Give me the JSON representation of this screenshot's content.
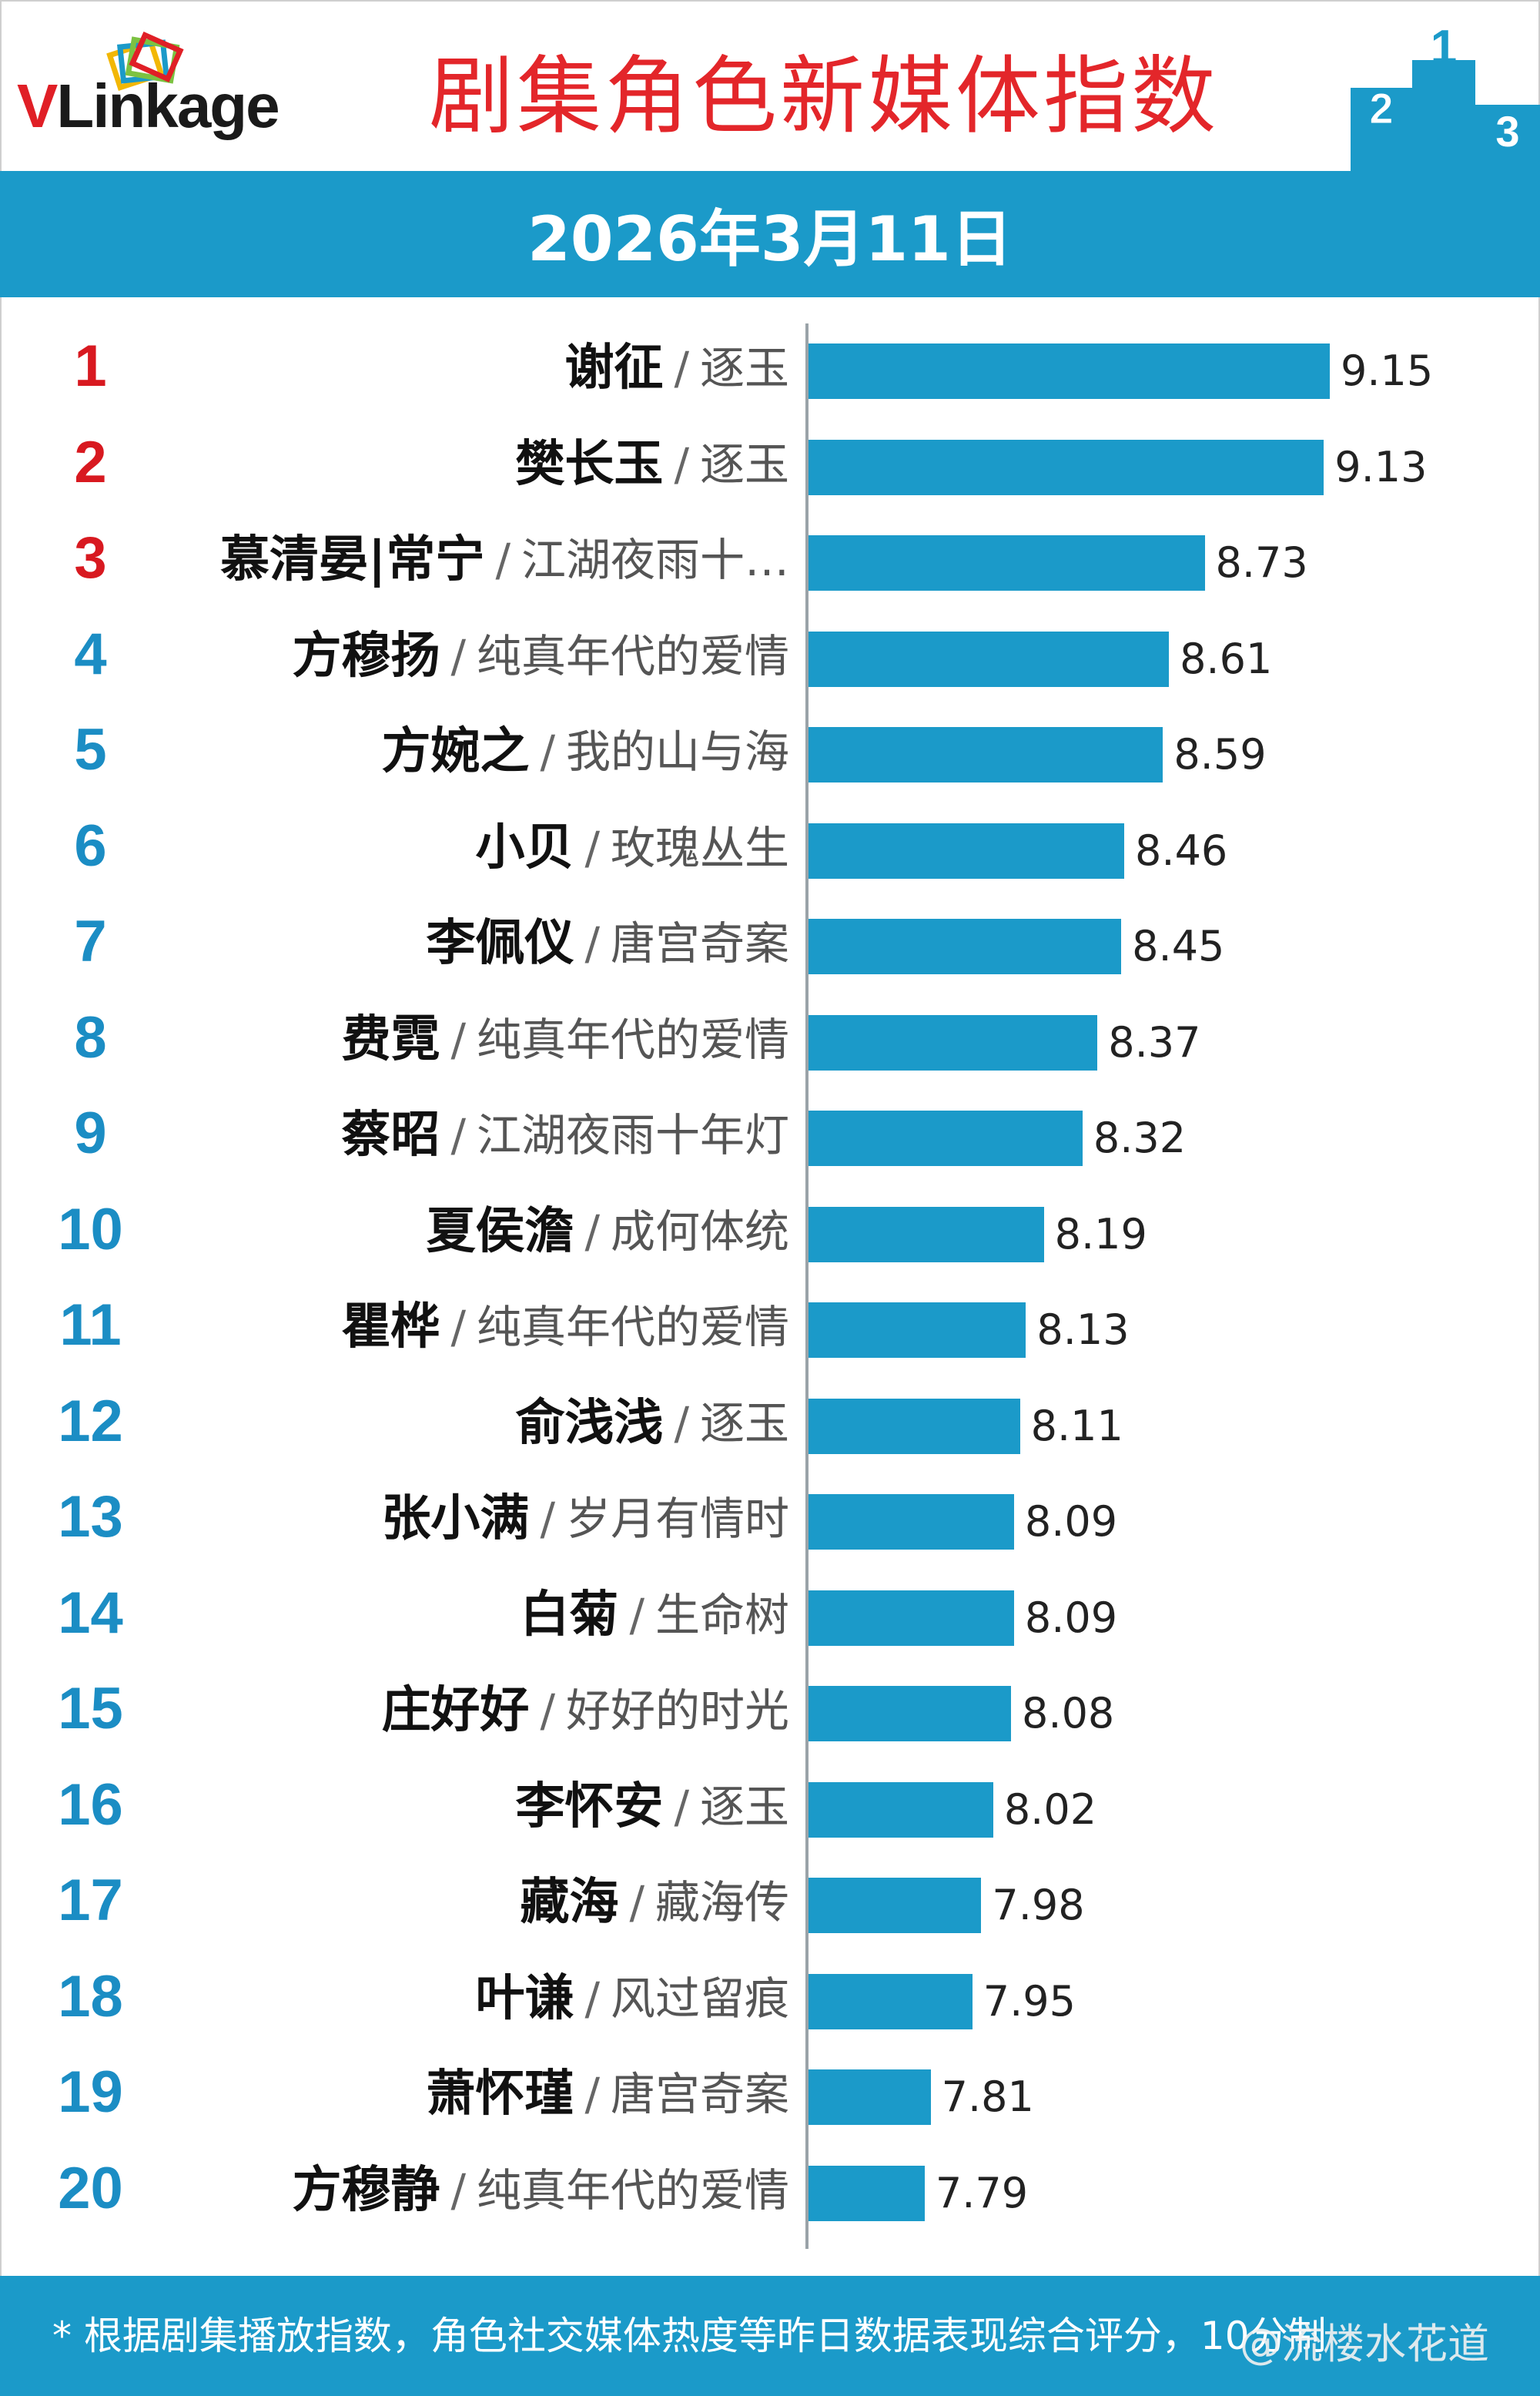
{
  "header": {
    "logo": {
      "v": "V",
      "rest": "Linkage"
    },
    "title": "剧集角色新媒体指数",
    "date": "2026年3月11日"
  },
  "podium_numbers": [
    "2",
    "1",
    "3"
  ],
  "colors": {
    "accent_blue": "#1b9ac9",
    "title_red": "#e3262a",
    "top_rank_red": "#d81920",
    "rank_blue": "#1b8dc4"
  },
  "chart_data": {
    "type": "bar",
    "orientation": "horizontal",
    "title": "剧集角色新媒体指数",
    "xlim": [
      7.4,
      9.3
    ],
    "rows": [
      {
        "rank": "1",
        "name": "谢征",
        "show": "逐玉",
        "value": 9.15
      },
      {
        "rank": "2",
        "name": "樊长玉",
        "show": "逐玉",
        "value": 9.13
      },
      {
        "rank": "3",
        "name": "慕清晏|常宁",
        "show": "江湖夜雨十…",
        "value": 8.73
      },
      {
        "rank": "4",
        "name": "方穆扬",
        "show": "纯真年代的爱情",
        "value": 8.61
      },
      {
        "rank": "5",
        "name": "方婉之",
        "show": "我的山与海",
        "value": 8.59
      },
      {
        "rank": "6",
        "name": "小贝",
        "show": "玫瑰丛生",
        "value": 8.46
      },
      {
        "rank": "7",
        "name": "李佩仪",
        "show": "唐宫奇案",
        "value": 8.45
      },
      {
        "rank": "8",
        "name": "费霓",
        "show": "纯真年代的爱情",
        "value": 8.37
      },
      {
        "rank": "9",
        "name": "蔡昭",
        "show": "江湖夜雨十年灯",
        "value": 8.32
      },
      {
        "rank": "10",
        "name": "夏侯澹",
        "show": "成何体统",
        "value": 8.19
      },
      {
        "rank": "11",
        "name": "瞿桦",
        "show": "纯真年代的爱情",
        "value": 8.13
      },
      {
        "rank": "12",
        "name": "俞浅浅",
        "show": "逐玉",
        "value": 8.11
      },
      {
        "rank": "13",
        "name": "张小满",
        "show": "岁月有情时",
        "value": 8.09
      },
      {
        "rank": "14",
        "name": "白菊",
        "show": "生命树",
        "value": 8.09
      },
      {
        "rank": "15",
        "name": "庄好好",
        "show": "好好的时光",
        "value": 8.08
      },
      {
        "rank": "16",
        "name": "李怀安",
        "show": "逐玉",
        "value": 8.02
      },
      {
        "rank": "17",
        "name": "藏海",
        "show": "藏海传",
        "value": 7.98
      },
      {
        "rank": "18",
        "name": "叶谦",
        "show": "风过留痕",
        "value": 7.95
      },
      {
        "rank": "19",
        "name": "萧怀瑾",
        "show": "唐宫奇案",
        "value": 7.81
      },
      {
        "rank": "20",
        "name": "方穆静",
        "show": "纯真年代的爱情",
        "value": 7.79
      }
    ],
    "separator": "/"
  },
  "footer": {
    "note": "* 根据剧集播放指数，角色社交媒体热度等昨日数据表现综合评分，10分制",
    "watermark": "@流楼水花道"
  }
}
